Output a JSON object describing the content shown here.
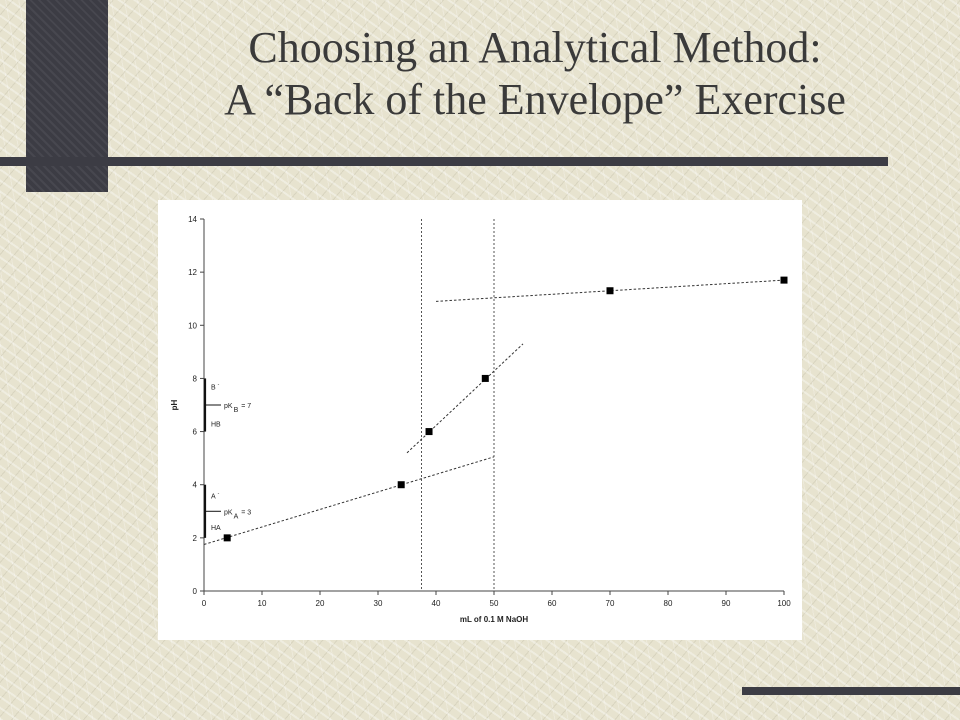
{
  "slide": {
    "title_line1": "Choosing an Analytical Method:",
    "title_line2": "A “Back of the Envelope” Exercise"
  },
  "colors": {
    "accent": "#3c3c44",
    "background": "#e7e3cf",
    "title": "#3a3a3a"
  },
  "chart_data": {
    "type": "scatter",
    "title": "",
    "xlabel": "mL of 0.1 M NaOH",
    "ylabel": "pH",
    "xlim": [
      0,
      100
    ],
    "ylim": [
      0,
      14
    ],
    "xticks": [
      0,
      10,
      20,
      30,
      40,
      50,
      60,
      70,
      80,
      90,
      100
    ],
    "yticks": [
      0,
      2,
      4,
      6,
      8,
      10,
      12,
      14
    ],
    "grid": false,
    "points": [
      {
        "x": 4,
        "y": 2.0
      },
      {
        "x": 34,
        "y": 4.0
      },
      {
        "x": 38.8,
        "y": 6.0
      },
      {
        "x": 48.5,
        "y": 8.0
      },
      {
        "x": 70,
        "y": 11.3
      },
      {
        "x": 100,
        "y": 11.7
      }
    ],
    "trendlines": [
      {
        "x1": 0,
        "y1": 1.75,
        "x2": 50,
        "y2": 5.05
      },
      {
        "x1": 35,
        "y1": 5.2,
        "x2": 55,
        "y2": 9.3
      },
      {
        "x1": 40,
        "y1": 10.9,
        "x2": 100,
        "y2": 11.7
      }
    ],
    "vertical_lines": [
      37.5,
      50
    ],
    "annotations": [
      {
        "label": "B",
        "sup": "-",
        "y": 7.7
      },
      {
        "label": "pK",
        "sub": "B",
        "tail": "= 7",
        "y": 7
      },
      {
        "label": "HB",
        "y": 6.3
      },
      {
        "label": "A",
        "sup": "-",
        "y": 3.6
      },
      {
        "label": "pK",
        "sub": "A",
        "tail": "= 3",
        "y": 3
      },
      {
        "label": "HA",
        "y": 2.4
      }
    ],
    "brackets": [
      {
        "y_from": 6,
        "y_to": 8,
        "tick_at": 7
      },
      {
        "y_from": 2,
        "y_to": 4,
        "tick_at": 3
      }
    ]
  }
}
